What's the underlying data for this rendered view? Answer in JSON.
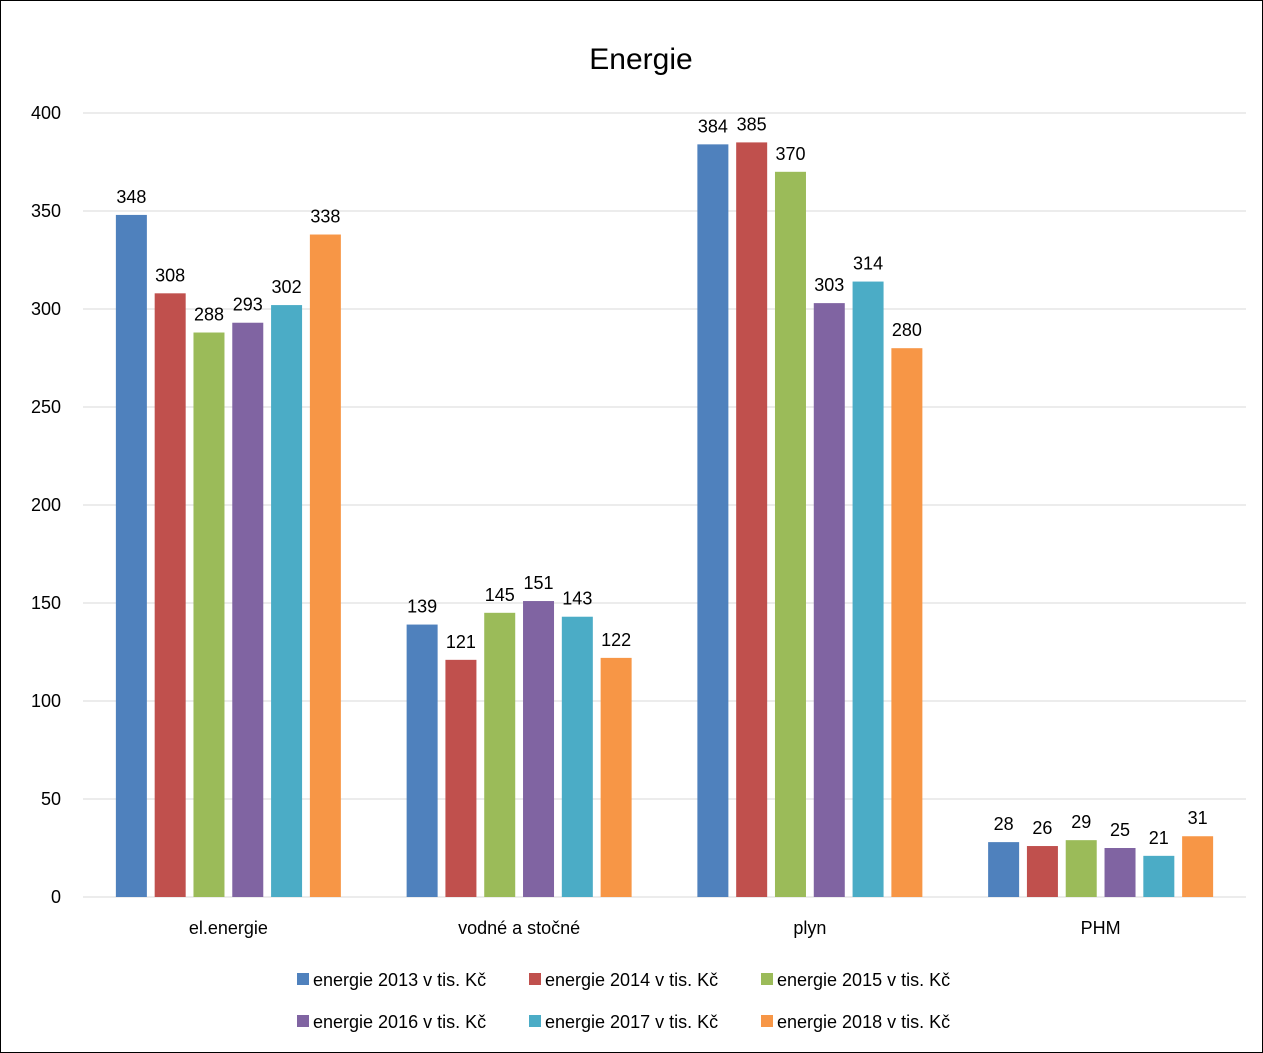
{
  "chart_data": {
    "type": "bar",
    "title": "Energie",
    "xlabel": "",
    "ylabel": "",
    "ylim": [
      0,
      400
    ],
    "yticks": [
      0,
      50,
      100,
      150,
      200,
      250,
      300,
      350,
      400
    ],
    "grid": true,
    "legend": "bottom",
    "categories": [
      "el.energie",
      "vodné a stočné",
      "plyn",
      "PHM"
    ],
    "series": [
      {
        "name": "energie 2013 v tis. Kč",
        "color": "#4f81bd",
        "values": [
          348,
          139,
          384,
          28
        ]
      },
      {
        "name": "energie 2014 v tis. Kč",
        "color": "#c0504d",
        "values": [
          308,
          121,
          385,
          26
        ]
      },
      {
        "name": "energie 2015 v tis. Kč",
        "color": "#9bbb59",
        "values": [
          288,
          145,
          370,
          29
        ]
      },
      {
        "name": "energie 2016 v tis. Kč",
        "color": "#8064a2",
        "values": [
          293,
          151,
          303,
          25
        ]
      },
      {
        "name": "energie 2017 v tis. Kč",
        "color": "#4bacc6",
        "values": [
          302,
          143,
          314,
          21
        ]
      },
      {
        "name": "energie 2018 v tis. Kč",
        "color": "#f79646",
        "values": [
          338,
          122,
          280,
          31
        ]
      }
    ]
  }
}
